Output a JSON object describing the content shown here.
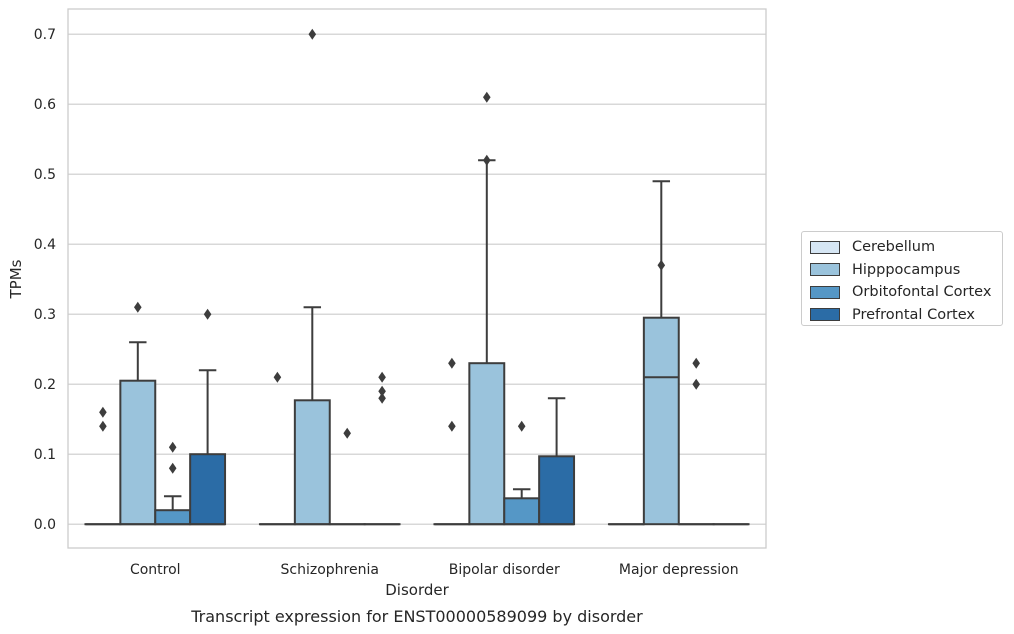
{
  "chart_data": {
    "type": "box",
    "title": "",
    "caption": "Transcript expression for ENST00000589099 by disorder",
    "xlabel": "Disorder",
    "ylabel": "TPMs",
    "ylim": [
      -0.034,
      0.736
    ],
    "yticks": [
      "0.0",
      "0.1",
      "0.2",
      "0.3",
      "0.4",
      "0.5",
      "0.6",
      "0.7"
    ],
    "grid": "horizontal",
    "legend_position": "right",
    "categories": [
      "Control",
      "Schizophrenia",
      "Bipolar disorder",
      "Major depression"
    ],
    "series": [
      {
        "name": "Cerebellum",
        "color": "#d6e6f4",
        "boxes": [
          {
            "q1": 0,
            "median": 0,
            "q3": 0,
            "whisker_low": 0,
            "whisker_high": 0,
            "outliers": [
              0.14,
              0.16
            ]
          },
          {
            "q1": 0,
            "median": 0,
            "q3": 0,
            "whisker_low": 0,
            "whisker_high": 0,
            "outliers": [
              0.21
            ]
          },
          {
            "q1": 0,
            "median": 0,
            "q3": 0,
            "whisker_low": 0,
            "whisker_high": 0,
            "outliers": [
              0.14,
              0.23
            ]
          },
          {
            "q1": 0,
            "median": 0,
            "q3": 0,
            "whisker_low": 0,
            "whisker_high": 0,
            "outliers": []
          }
        ]
      },
      {
        "name": "Hipppocampus",
        "color": "#9ac3dc",
        "boxes": [
          {
            "q1": 0,
            "median": 0,
            "q3": 0.205,
            "whisker_low": 0,
            "whisker_high": 0.26,
            "outliers": [
              0.31
            ]
          },
          {
            "q1": 0,
            "median": 0,
            "q3": 0.177,
            "whisker_low": 0,
            "whisker_high": 0.31,
            "outliers": [
              0.7
            ]
          },
          {
            "q1": 0,
            "median": 0,
            "q3": 0.23,
            "whisker_low": 0,
            "whisker_high": 0.52,
            "outliers": [
              0.52,
              0.61
            ]
          },
          {
            "q1": 0,
            "median": 0.21,
            "q3": 0.295,
            "whisker_low": 0,
            "whisker_high": 0.49,
            "outliers": [
              0.37
            ]
          }
        ]
      },
      {
        "name": "Orbitofontal Cortex",
        "color": "#5597c6",
        "boxes": [
          {
            "q1": 0,
            "median": 0,
            "q3": 0.02,
            "whisker_low": 0,
            "whisker_high": 0.04,
            "outliers": [
              0.08,
              0.11
            ]
          },
          {
            "q1": 0,
            "median": 0,
            "q3": 0,
            "whisker_low": 0,
            "whisker_high": 0,
            "outliers": [
              0.13
            ]
          },
          {
            "q1": 0,
            "median": 0,
            "q3": 0.037,
            "whisker_low": 0,
            "whisker_high": 0.05,
            "outliers": [
              0.14
            ]
          },
          {
            "q1": 0,
            "median": 0,
            "q3": 0,
            "whisker_low": 0,
            "whisker_high": 0,
            "outliers": [
              0.2,
              0.23
            ]
          }
        ]
      },
      {
        "name": "Prefrontal Cortex",
        "color": "#2b6ca6",
        "boxes": [
          {
            "q1": 0,
            "median": 0,
            "q3": 0.1,
            "whisker_low": 0,
            "whisker_high": 0.22,
            "outliers": [
              0.3
            ]
          },
          {
            "q1": 0,
            "median": 0,
            "q3": 0,
            "whisker_low": 0,
            "whisker_high": 0,
            "outliers": [
              0.18,
              0.19,
              0.21
            ]
          },
          {
            "q1": 0,
            "median": 0,
            "q3": 0.097,
            "whisker_low": 0,
            "whisker_high": 0.18,
            "outliers": []
          },
          {
            "q1": 0,
            "median": 0,
            "q3": 0,
            "whisker_low": 0,
            "whisker_high": 0,
            "outliers": []
          }
        ]
      }
    ]
  }
}
